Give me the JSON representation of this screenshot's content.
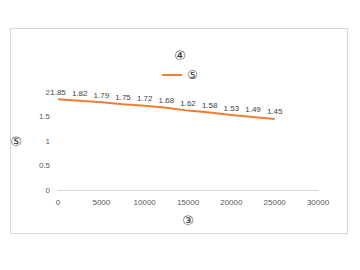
{
  "chart_data": {
    "type": "line",
    "title": "④",
    "x_label": "③",
    "y_label": "⑤",
    "x": [
      0,
      2500,
      5000,
      7500,
      10000,
      12500,
      15000,
      17500,
      20000,
      22500,
      25000
    ],
    "series": [
      {
        "name": "⑤",
        "color": "#ed7d31",
        "values": [
          1.85,
          1.82,
          1.79,
          1.75,
          1.72,
          1.68,
          1.62,
          1.58,
          1.53,
          1.49,
          1.45
        ]
      }
    ],
    "xlim": [
      0,
      30000
    ],
    "xticks": [
      0,
      5000,
      10000,
      15000,
      20000,
      25000,
      30000
    ],
    "ylim": [
      0,
      2
    ],
    "yticks": [
      0,
      0.5,
      1,
      1.5,
      2
    ],
    "grid": false,
    "legend": "top",
    "data_labels": true
  }
}
